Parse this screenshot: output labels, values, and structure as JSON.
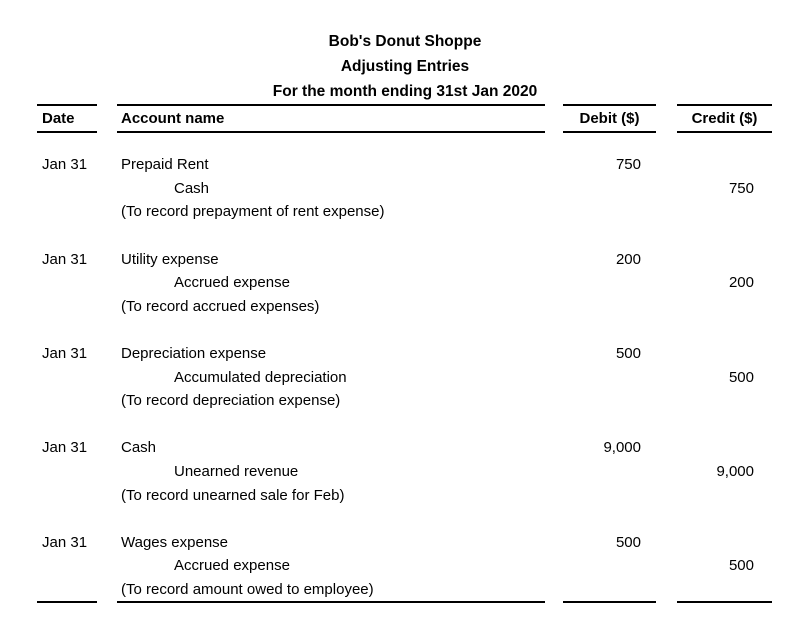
{
  "header": {
    "company": "Bob's Donut Shoppe",
    "statement": "Adjusting Entries",
    "period": "For the month ending 31st Jan 2020"
  },
  "table": {
    "columns": {
      "date": "Date",
      "account": "Account name",
      "debit": "Debit ($)",
      "credit": "Credit ($)"
    },
    "entries": [
      {
        "date": "Jan 31",
        "debit_account": "Prepaid Rent",
        "debit_amount": "750",
        "credit_account": "Cash",
        "credit_amount": "750",
        "narration": "(To record prepayment of rent expense)"
      },
      {
        "date": "Jan 31",
        "debit_account": "Utility expense",
        "debit_amount": "200",
        "credit_account": "Accrued expense",
        "credit_amount": "200",
        "narration": "(To record accrued expenses)"
      },
      {
        "date": "Jan 31",
        "debit_account": "Depreciation expense",
        "debit_amount": "500",
        "credit_account": "Accumulated depreciation",
        "credit_amount": "500",
        "narration": "(To record depreciation expense)"
      },
      {
        "date": "Jan 31",
        "debit_account": "Cash",
        "debit_amount": "9,000",
        "credit_account": "Unearned revenue",
        "credit_amount": "9,000",
        "narration": "(To record unearned sale for Feb)"
      },
      {
        "date": "Jan 31",
        "debit_account": "Wages expense",
        "debit_amount": "500",
        "credit_account": "Accrued expense",
        "credit_amount": "500",
        "narration": "(To record amount owed to employee)"
      }
    ]
  }
}
